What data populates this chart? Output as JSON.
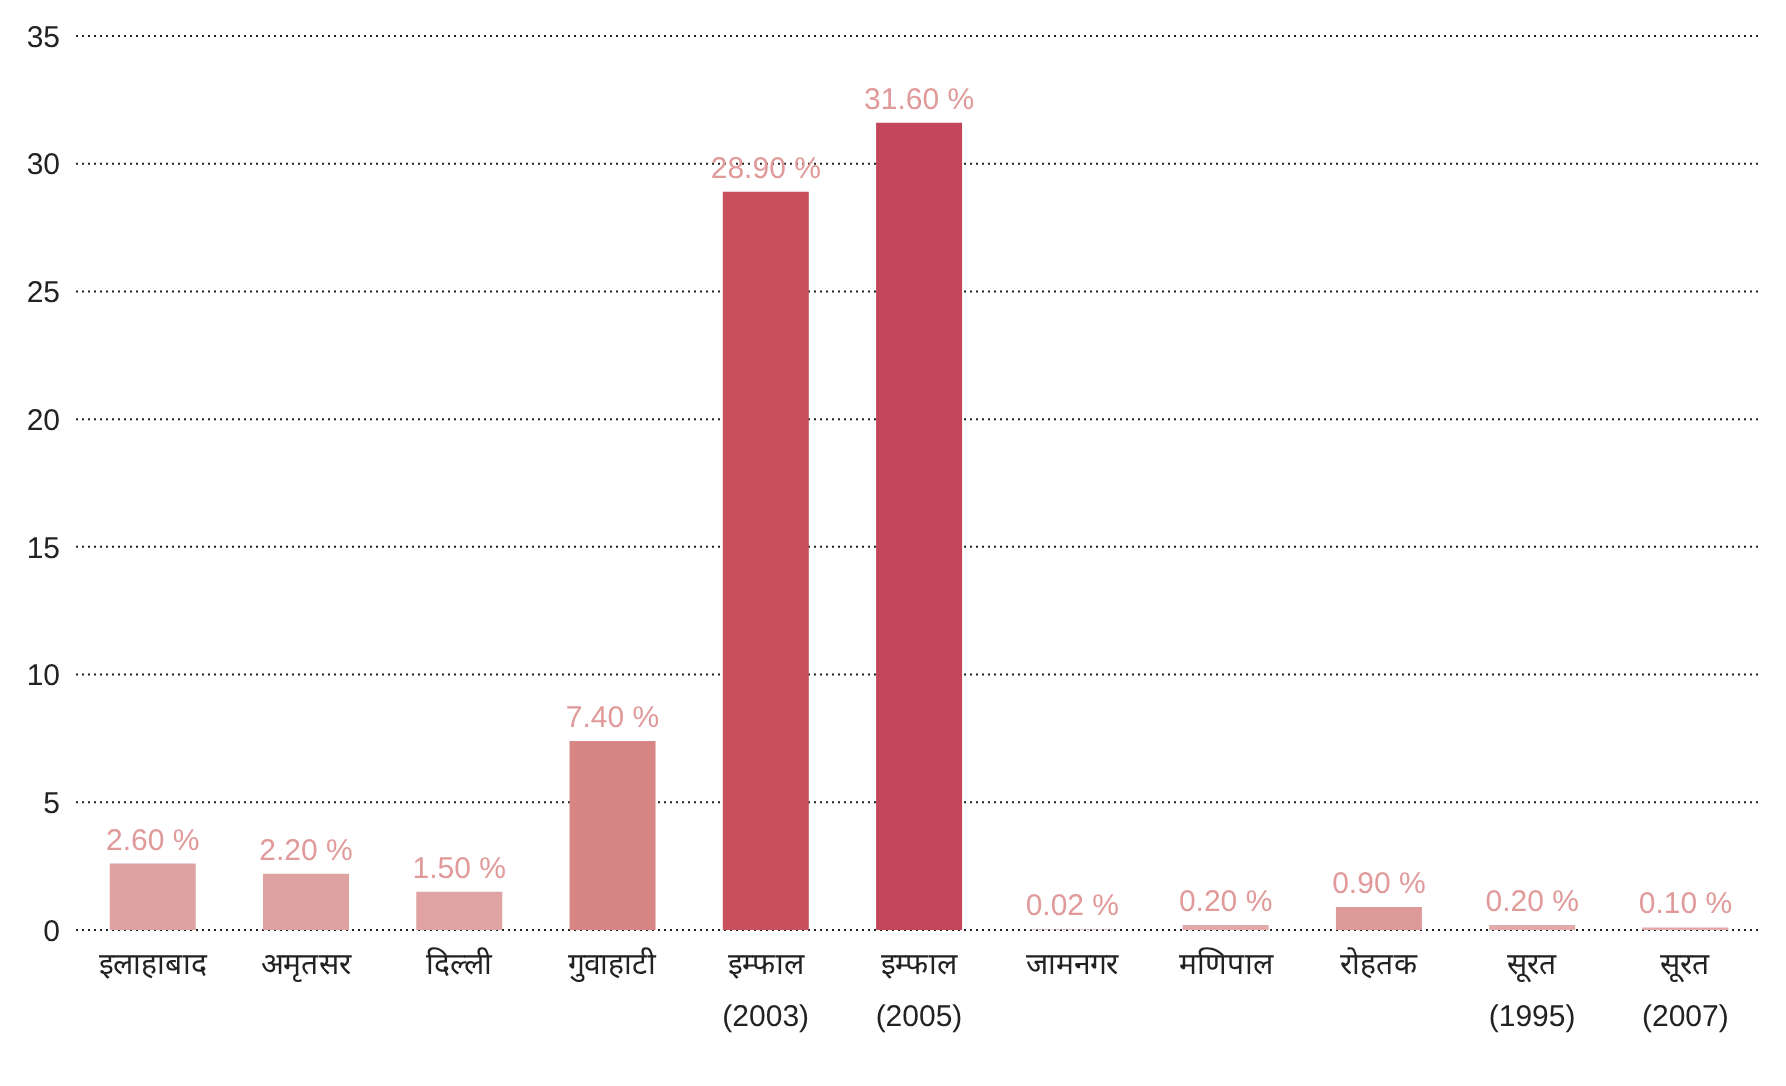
{
  "chart_data": {
    "type": "bar",
    "categories": [
      "इलाहाबाद",
      "अमृतसर",
      "दिल्ली",
      "गुवाहाटी",
      "इम्फाल\n(2003)",
      "इम्फाल\n(2005)",
      "जामनगर",
      "मणिपाल",
      "रोहतक",
      "सूरत\n(1995)",
      "सूरत\n(2007)"
    ],
    "values": [
      2.6,
      2.2,
      1.5,
      7.4,
      28.9,
      31.6,
      0.02,
      0.2,
      0.9,
      0.2,
      0.1
    ],
    "value_labels": [
      "2.60 %",
      "2.20 %",
      "1.50 %",
      "7.40 %",
      "28.90 %",
      "31.60 %",
      "0.02 %",
      "0.20 %",
      "0.90 %",
      "0.20 %",
      "0.10 %"
    ],
    "colors": [
      "#dfa2a2",
      "#dfa2a2",
      "#e0a3a3",
      "#d88585",
      "#c8505c",
      "#c4465a",
      "#e3aaaa",
      "#e3aaaa",
      "#dd9898",
      "#e3aaaa",
      "#e3aaaa"
    ],
    "ylim": [
      0,
      35
    ],
    "yticks": [
      0,
      5,
      10,
      15,
      20,
      25,
      30,
      35
    ],
    "grid": "y"
  }
}
